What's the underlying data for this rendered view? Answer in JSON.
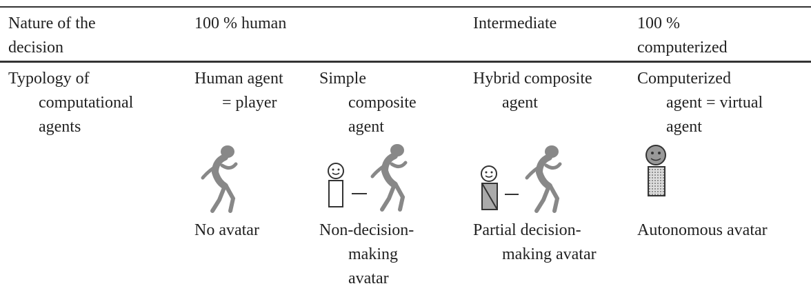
{
  "header": {
    "rows": [
      [
        "Nature of the",
        "decision"
      ],
      [
        "100 % human"
      ],
      [
        "Intermediate"
      ],
      [
        "100 %",
        "computerized"
      ]
    ]
  },
  "typology": {
    "label": [
      "Typology of",
      "computational",
      "agents"
    ],
    "agents": [
      {
        "name": [
          "Human agent",
          "= player"
        ],
        "avatar": [
          "No avatar"
        ]
      },
      {
        "name": [
          "Simple",
          "composite",
          "agent"
        ],
        "avatar": [
          "Non-decision-",
          "making",
          "avatar"
        ]
      },
      {
        "name": [
          "Hybrid composite",
          "agent"
        ],
        "avatar": [
          "Partial decision-",
          "making avatar"
        ]
      },
      {
        "name": [
          "Computerized",
          "agent = virtual",
          "agent"
        ],
        "avatar": [
          "Autonomous avatar"
        ]
      }
    ]
  }
}
